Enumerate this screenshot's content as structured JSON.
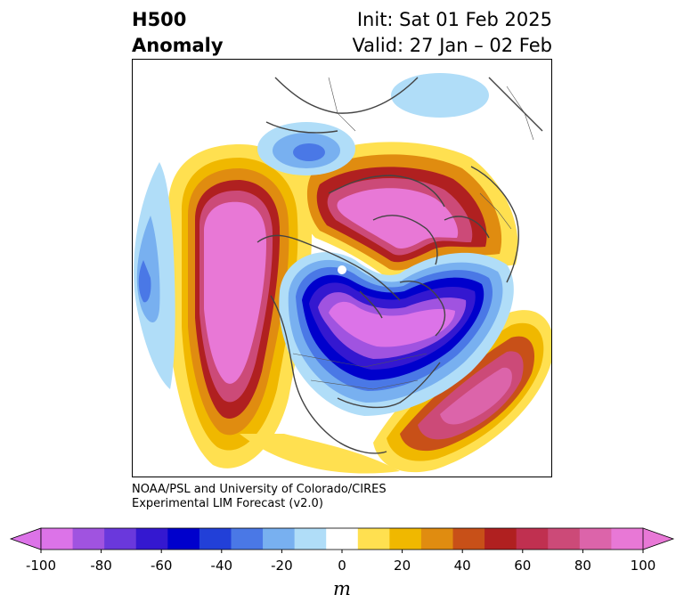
{
  "title": {
    "left_line1": "H500",
    "left_line2": "Anomaly",
    "right_line1": "Init: Sat 01 Feb 2025",
    "right_line2": "Valid: 27 Jan – 02 Feb"
  },
  "credit": {
    "line1": "NOAA/PSL and University of Colorado/CIRES",
    "line2": "Experimental LIM Forecast (v2.0)"
  },
  "colorbar": {
    "units": "m",
    "ticks": [
      "-100",
      "-80",
      "-60",
      "-40",
      "-20",
      "0",
      "20",
      "40",
      "60",
      "80",
      "100"
    ],
    "tick_values": [
      -100,
      -80,
      -60,
      -40,
      -20,
      0,
      20,
      40,
      60,
      80,
      100
    ],
    "levels": [
      -100,
      -90,
      -80,
      -70,
      -60,
      -50,
      -40,
      -30,
      -20,
      -10,
      10,
      20,
      30,
      40,
      50,
      60,
      70,
      80,
      90,
      100
    ],
    "colors": [
      "#dc73e8",
      "#a053e0",
      "#6a38dc",
      "#3418d0",
      "#0000cc",
      "#2240d8",
      "#4a78e6",
      "#78b0f0",
      "#b0ddf8",
      "#ffffff",
      "#ffe050",
      "#f0b800",
      "#e08c10",
      "#c85018",
      "#b02020",
      "#c03050",
      "#cc4a78",
      "#dc64aa",
      "#e878d6"
    ],
    "under_color": "#dc73e8",
    "over_color": "#e878d6"
  }
}
